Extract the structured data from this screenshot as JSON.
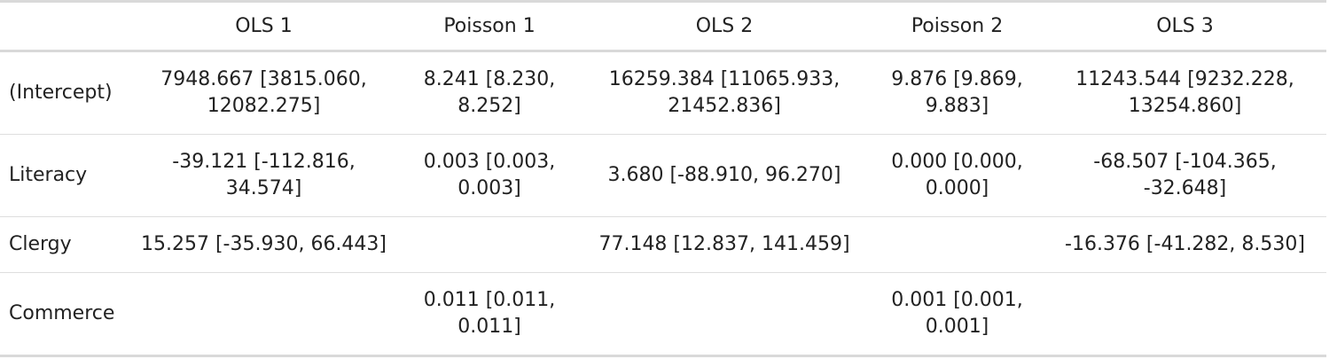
{
  "table": {
    "columns": [
      "",
      "OLS 1",
      "Poisson 1",
      "OLS 2",
      "Poisson 2",
      "OLS 3"
    ],
    "rows": [
      {
        "label": "(Intercept)",
        "cells": [
          "7948.667 [3815.060,\n12082.275]",
          "8.241 [8.230,\n8.252]",
          "16259.384 [11065.933,\n21452.836]",
          "9.876 [9.869,\n9.883]",
          "11243.544 [9232.228,\n13254.860]"
        ]
      },
      {
        "label": "Literacy",
        "cells": [
          "-39.121 [-112.816,\n34.574]",
          "0.003 [0.003,\n0.003]",
          "3.680 [-88.910, 96.270]",
          "0.000 [0.000,\n0.000]",
          "-68.507 [-104.365,\n-32.648]"
        ]
      },
      {
        "label": "Clergy",
        "cells": [
          "15.257 [-35.930, 66.443]",
          "",
          "77.148 [12.837, 141.459]",
          "",
          "-16.376 [-41.282, 8.530]"
        ]
      },
      {
        "label": "Commerce",
        "cells": [
          "",
          "0.011 [0.011,\n0.011]",
          "",
          "0.001 [0.001,\n0.001]",
          ""
        ]
      }
    ]
  }
}
